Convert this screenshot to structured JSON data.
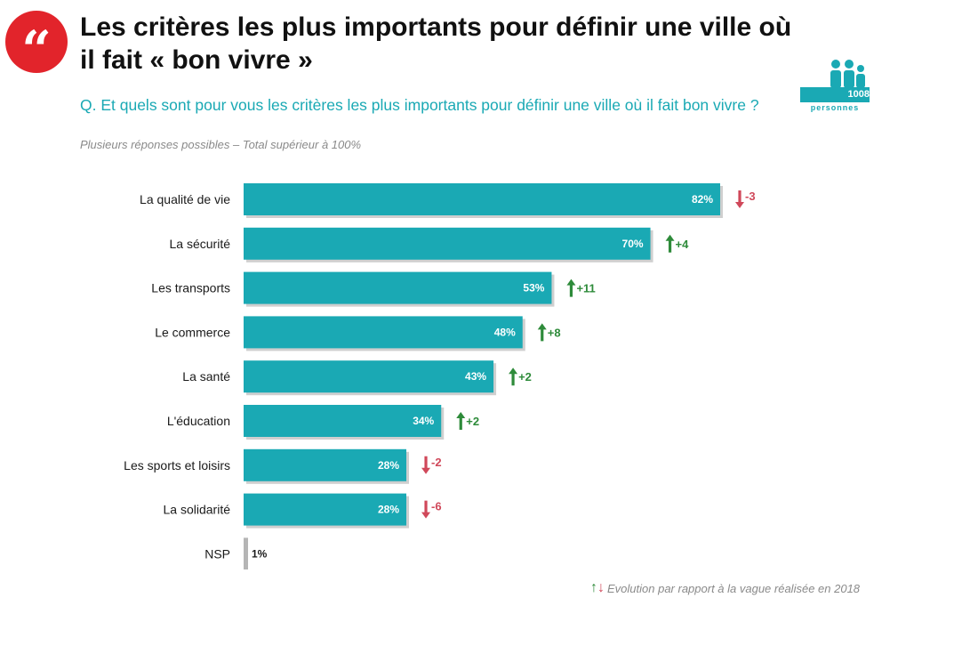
{
  "header": {
    "quote_mark": "“",
    "title": "Les critères les plus importants pour définir une ville où il fait « bon vivre »",
    "question": "Q. Et quels sont pour vous les critères les plus importants pour définir une ville où il fait bon vivre ?",
    "note": "Plusieurs réponses possibles – Total supérieur à 100%"
  },
  "sample": {
    "count": "1008",
    "label": "personnes"
  },
  "colors": {
    "bar": "#1aa9b4",
    "nsp_bar": "#b5b5b5",
    "up": "#2e8b3a",
    "down": "#d0485a",
    "brand_red": "#e2242b"
  },
  "chart_data": {
    "type": "bar",
    "orientation": "horizontal",
    "title": "Les critères les plus importants pour définir une ville où il fait « bon vivre »",
    "categories": [
      "La qualité de vie",
      "La sécurité",
      "Les transports",
      "Le commerce",
      "La santé",
      "L'éducation",
      "Les sports et loisirs",
      "La solidarité",
      "NSP"
    ],
    "values": [
      82,
      70,
      53,
      48,
      43,
      34,
      28,
      28,
      1
    ],
    "value_labels": [
      "82%",
      "70%",
      "53%",
      "48%",
      "43%",
      "34%",
      "28%",
      "28%",
      "1%"
    ],
    "evolution": [
      -3,
      4,
      11,
      8,
      2,
      2,
      -2,
      -6,
      null
    ],
    "evolution_labels": [
      "-3",
      "+4",
      "+11",
      "+8",
      "+2",
      "+2",
      "-2",
      "-6",
      ""
    ],
    "xlim": [
      0,
      82
    ],
    "xlabel": "",
    "ylabel": ""
  },
  "footnote": {
    "up_arrow": "↑",
    "down_arrow": "↓",
    "text": "Evolution par rapport à la vague réalisée en 2018"
  }
}
